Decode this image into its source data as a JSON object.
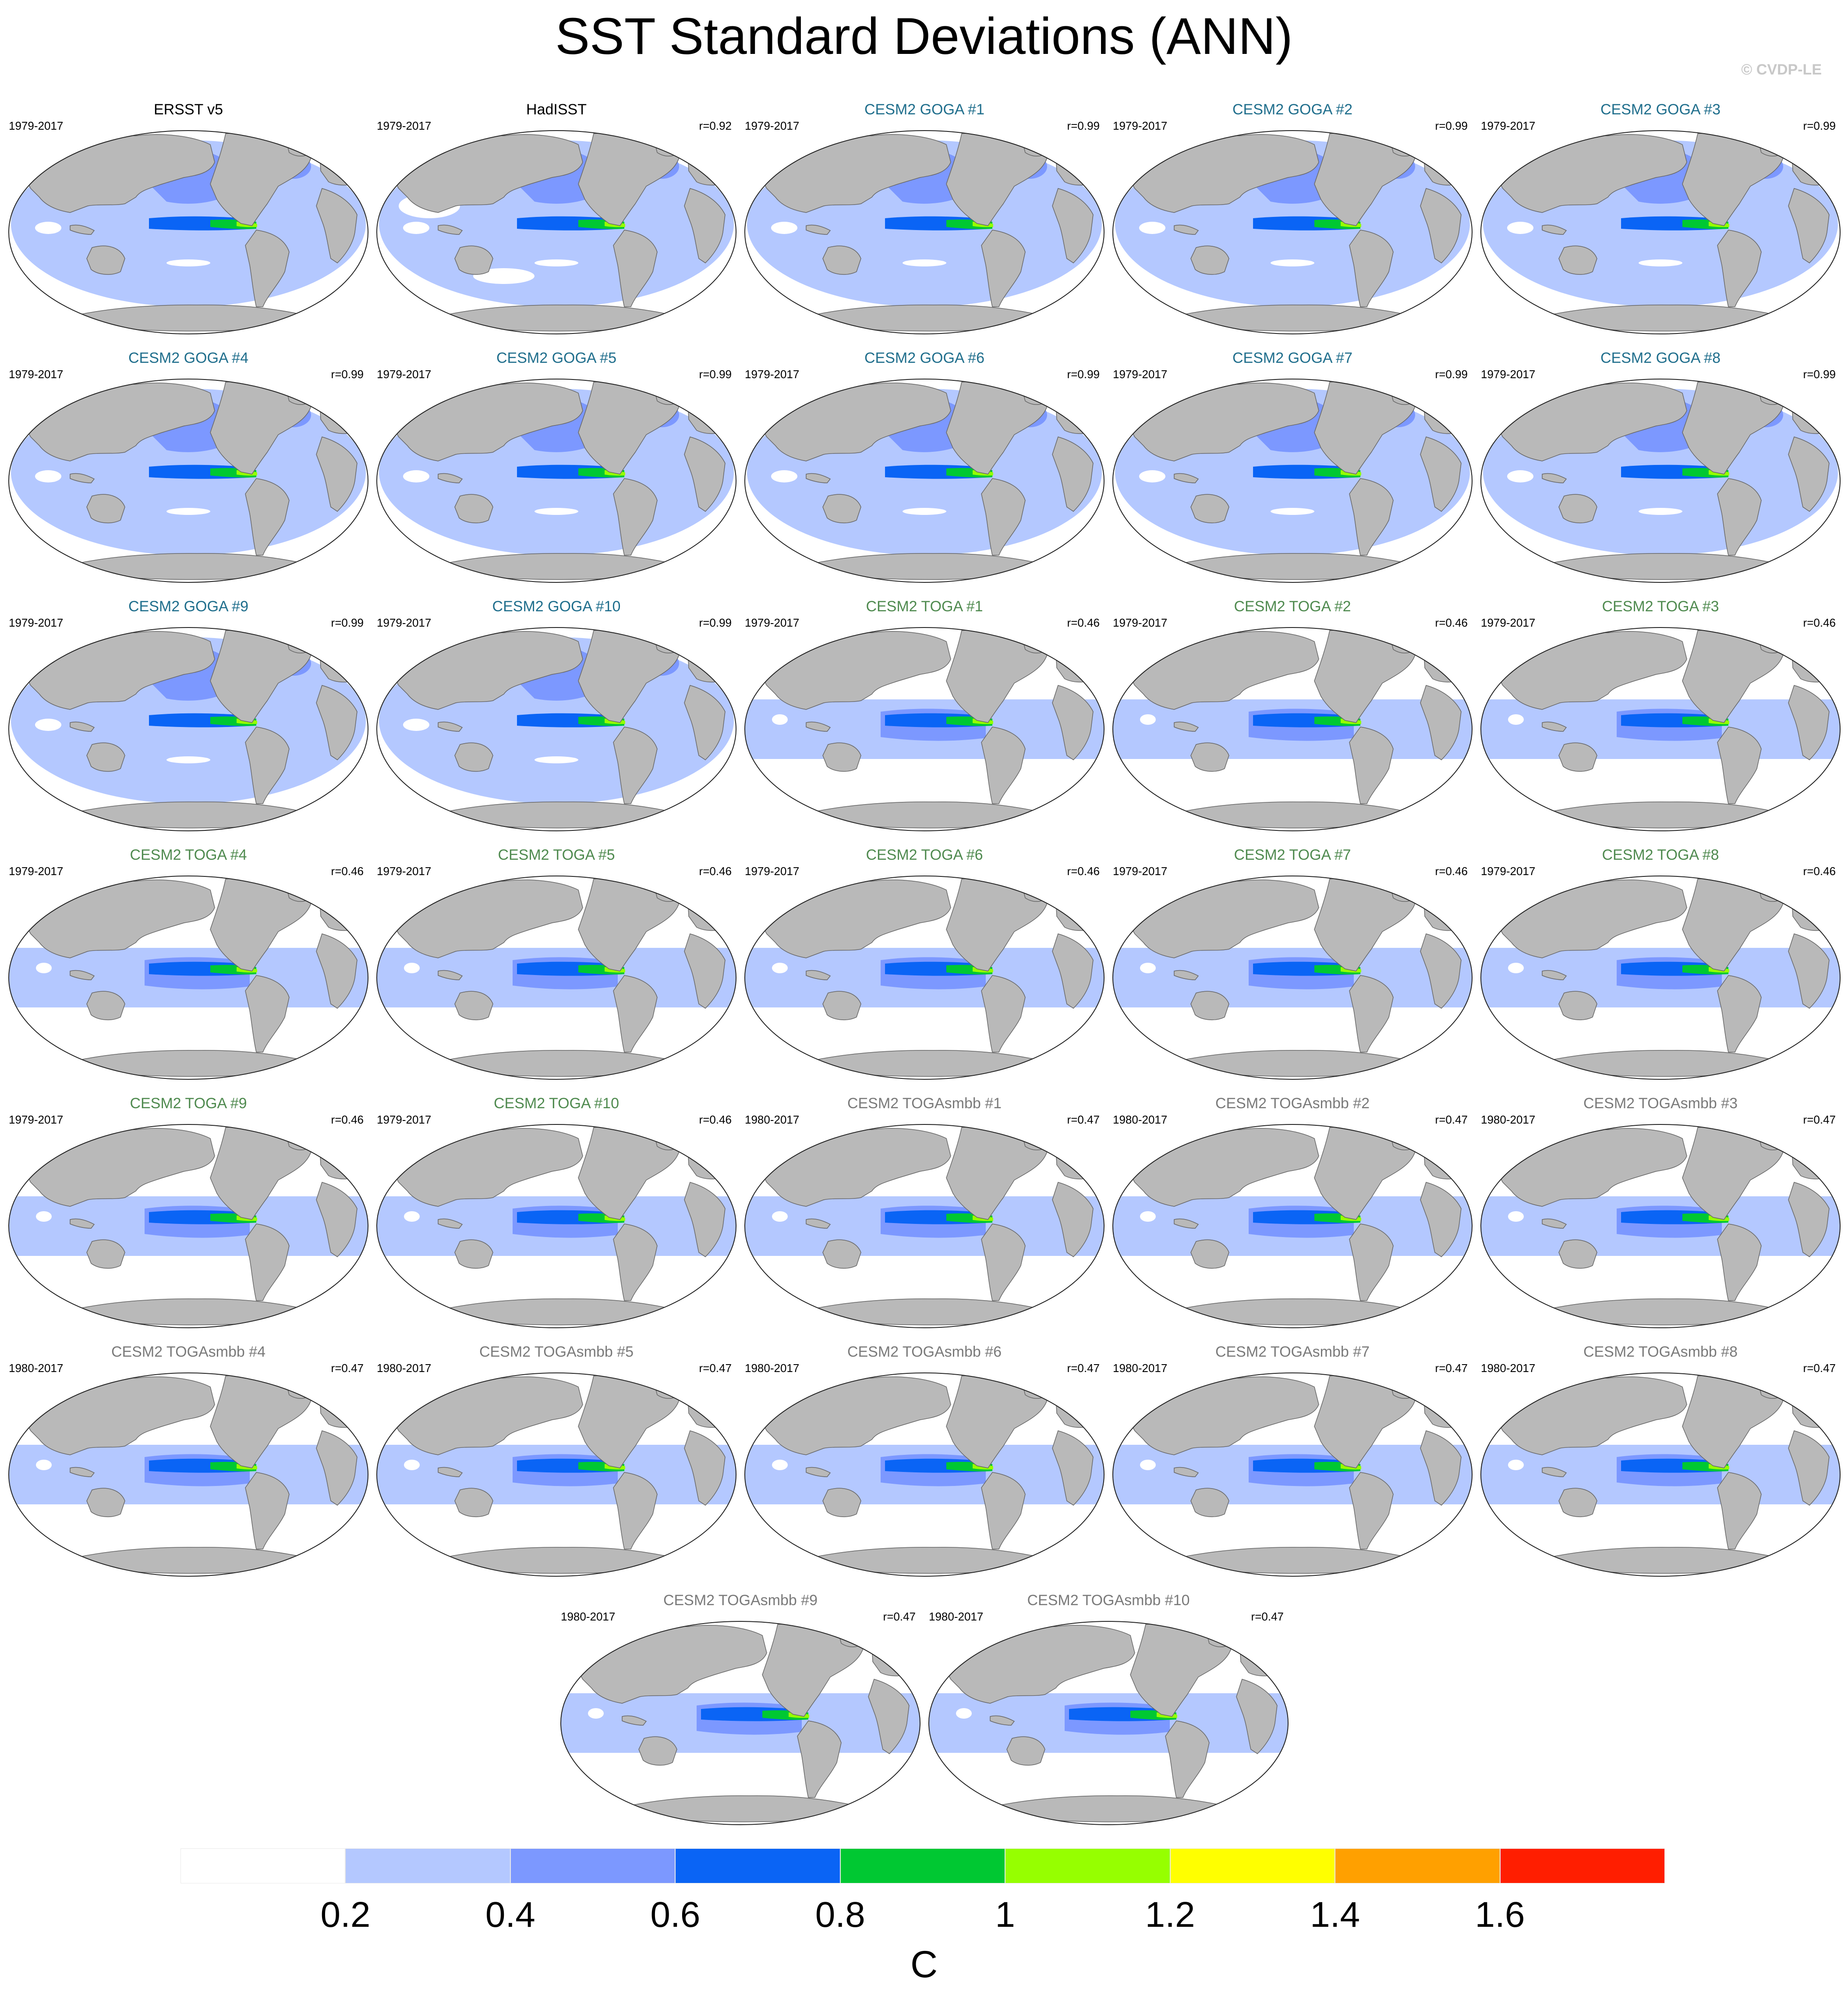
{
  "title": "SST Standard Deviations (ANN)",
  "credit": "© CVDP-LE",
  "colors": {
    "land": "#b9b9b9",
    "coast": "#666666",
    "goga_title": "#1f6e8c",
    "toga_title": "#4f8a4f",
    "smbb_title": "#7a7a7a",
    "obs_title": "#000000"
  },
  "panels": [
    {
      "title": "ERSST v5",
      "years": "1979-2017",
      "r": "",
      "group": "obs",
      "pattern": "obs"
    },
    {
      "title": "HadISST",
      "years": "1979-2017",
      "r": "r=0.92",
      "group": "obs",
      "pattern": "had"
    },
    {
      "title": "CESM2 GOGA #1",
      "years": "1979-2017",
      "r": "r=0.99",
      "group": "goga",
      "pattern": "goga"
    },
    {
      "title": "CESM2 GOGA #2",
      "years": "1979-2017",
      "r": "r=0.99",
      "group": "goga",
      "pattern": "goga"
    },
    {
      "title": "CESM2 GOGA #3",
      "years": "1979-2017",
      "r": "r=0.99",
      "group": "goga",
      "pattern": "goga"
    },
    {
      "title": "CESM2 GOGA #4",
      "years": "1979-2017",
      "r": "r=0.99",
      "group": "goga",
      "pattern": "goga"
    },
    {
      "title": "CESM2 GOGA #5",
      "years": "1979-2017",
      "r": "r=0.99",
      "group": "goga",
      "pattern": "goga"
    },
    {
      "title": "CESM2 GOGA #6",
      "years": "1979-2017",
      "r": "r=0.99",
      "group": "goga",
      "pattern": "goga"
    },
    {
      "title": "CESM2 GOGA #7",
      "years": "1979-2017",
      "r": "r=0.99",
      "group": "goga",
      "pattern": "goga"
    },
    {
      "title": "CESM2 GOGA #8",
      "years": "1979-2017",
      "r": "r=0.99",
      "group": "goga",
      "pattern": "goga"
    },
    {
      "title": "CESM2 GOGA #9",
      "years": "1979-2017",
      "r": "r=0.99",
      "group": "goga",
      "pattern": "goga"
    },
    {
      "title": "CESM2 GOGA #10",
      "years": "1979-2017",
      "r": "r=0.99",
      "group": "goga",
      "pattern": "goga"
    },
    {
      "title": "CESM2 TOGA #1",
      "years": "1979-2017",
      "r": "r=0.46",
      "group": "toga",
      "pattern": "toga"
    },
    {
      "title": "CESM2 TOGA #2",
      "years": "1979-2017",
      "r": "r=0.46",
      "group": "toga",
      "pattern": "toga"
    },
    {
      "title": "CESM2 TOGA #3",
      "years": "1979-2017",
      "r": "r=0.46",
      "group": "toga",
      "pattern": "toga"
    },
    {
      "title": "CESM2 TOGA #4",
      "years": "1979-2017",
      "r": "r=0.46",
      "group": "toga",
      "pattern": "toga"
    },
    {
      "title": "CESM2 TOGA #5",
      "years": "1979-2017",
      "r": "r=0.46",
      "group": "toga",
      "pattern": "toga"
    },
    {
      "title": "CESM2 TOGA #6",
      "years": "1979-2017",
      "r": "r=0.46",
      "group": "toga",
      "pattern": "toga"
    },
    {
      "title": "CESM2 TOGA #7",
      "years": "1979-2017",
      "r": "r=0.46",
      "group": "toga",
      "pattern": "toga"
    },
    {
      "title": "CESM2 TOGA #8",
      "years": "1979-2017",
      "r": "r=0.46",
      "group": "toga",
      "pattern": "toga"
    },
    {
      "title": "CESM2 TOGA #9",
      "years": "1979-2017",
      "r": "r=0.46",
      "group": "toga",
      "pattern": "toga"
    },
    {
      "title": "CESM2 TOGA #10",
      "years": "1979-2017",
      "r": "r=0.46",
      "group": "toga",
      "pattern": "toga"
    },
    {
      "title": "CESM2 TOGAsmbb #1",
      "years": "1980-2017",
      "r": "r=0.47",
      "group": "smbb",
      "pattern": "toga"
    },
    {
      "title": "CESM2 TOGAsmbb #2",
      "years": "1980-2017",
      "r": "r=0.47",
      "group": "smbb",
      "pattern": "toga"
    },
    {
      "title": "CESM2 TOGAsmbb #3",
      "years": "1980-2017",
      "r": "r=0.47",
      "group": "smbb",
      "pattern": "toga"
    },
    {
      "title": "CESM2 TOGAsmbb #4",
      "years": "1980-2017",
      "r": "r=0.47",
      "group": "smbb",
      "pattern": "toga"
    },
    {
      "title": "CESM2 TOGAsmbb #5",
      "years": "1980-2017",
      "r": "r=0.47",
      "group": "smbb",
      "pattern": "toga"
    },
    {
      "title": "CESM2 TOGAsmbb #6",
      "years": "1980-2017",
      "r": "r=0.47",
      "group": "smbb",
      "pattern": "toga"
    },
    {
      "title": "CESM2 TOGAsmbb #7",
      "years": "1980-2017",
      "r": "r=0.47",
      "group": "smbb",
      "pattern": "toga"
    },
    {
      "title": "CESM2 TOGAsmbb #8",
      "years": "1980-2017",
      "r": "r=0.47",
      "group": "smbb",
      "pattern": "toga"
    },
    {
      "title": "CESM2 TOGAsmbb #9",
      "years": "1980-2017",
      "r": "r=0.47",
      "group": "smbb",
      "pattern": "toga"
    },
    {
      "title": "CESM2 TOGAsmbb #10",
      "years": "1980-2017",
      "r": "r=0.47",
      "group": "smbb",
      "pattern": "toga"
    }
  ],
  "colorbar": {
    "unit": "C",
    "levels": [
      "0.2",
      "0.4",
      "0.6",
      "0.8",
      "1",
      "1.2",
      "1.4",
      "1.6"
    ],
    "colors": [
      "#ffffff",
      "#b4c8ff",
      "#7c98ff",
      "#0a64f5",
      "#00c832",
      "#96ff00",
      "#ffff00",
      "#ffa000",
      "#ff1e00"
    ]
  }
}
